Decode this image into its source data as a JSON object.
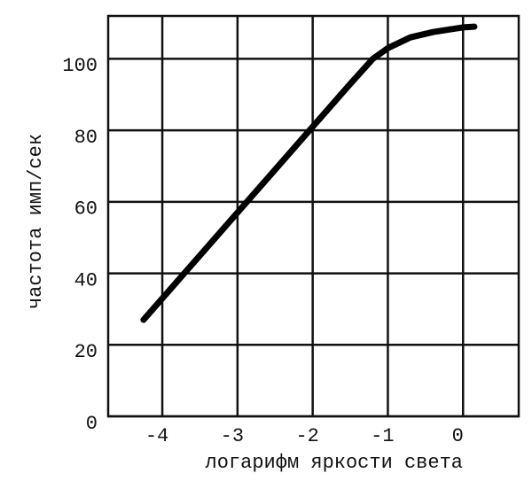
{
  "chart_data": {
    "type": "line",
    "x_label": "логарифм яркости света",
    "y_label": "частота имп/сек",
    "x": [
      -4.25,
      -3.5,
      -3,
      -2.5,
      -2,
      -1.5,
      -1.2,
      -1,
      -0.7,
      -0.4,
      0,
      0.15
    ],
    "series": [
      {
        "color": "#000000",
        "values": [
          27,
          45,
          57,
          69,
          81,
          93,
          100,
          103,
          106,
          107.5,
          108.8,
          109
        ]
      }
    ],
    "xlim": [
      -4.72,
      0.74
    ],
    "xticks": [
      -4,
      -3,
      -2,
      -1,
      0
    ],
    "ylim": [
      0,
      112
    ],
    "yticks": [
      0,
      20,
      40,
      60,
      80,
      100
    ],
    "grid": true
  }
}
